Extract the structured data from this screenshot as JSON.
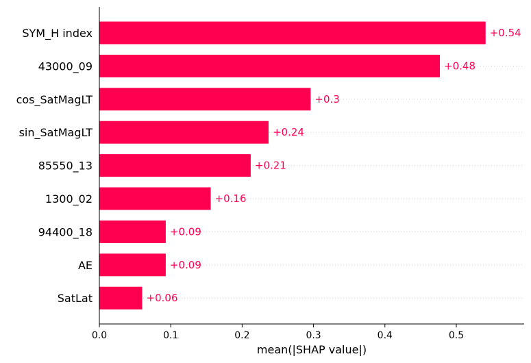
{
  "chart_data": {
    "type": "bar",
    "orientation": "horizontal",
    "categories": [
      "SYM_H index",
      "43000_09",
      "cos_SatMagLT",
      "sin_SatMagLT",
      "85550_13",
      "1300_02",
      "94400_18",
      "AE",
      "SatLat"
    ],
    "values": [
      0.541,
      0.477,
      0.296,
      0.237,
      0.212,
      0.156,
      0.093,
      0.093,
      0.06
    ],
    "data_labels": [
      "+0.54",
      "+0.48",
      "+0.3",
      "+0.24",
      "+0.21",
      "+0.16",
      "+0.09",
      "+0.09",
      "+0.06"
    ],
    "xlabel": "mean(|SHAP value|)",
    "ylabel": "",
    "xlim": [
      0,
      0.6
    ],
    "xticks": [
      0.0,
      0.1,
      0.2,
      0.3,
      0.4,
      0.5
    ],
    "xtick_labels": [
      "0.0",
      "0.1",
      "0.2",
      "0.3",
      "0.4",
      "0.5"
    ],
    "grid": "dotted row guides",
    "bar_color": "#ff0051",
    "label_color": "#ff0051"
  }
}
